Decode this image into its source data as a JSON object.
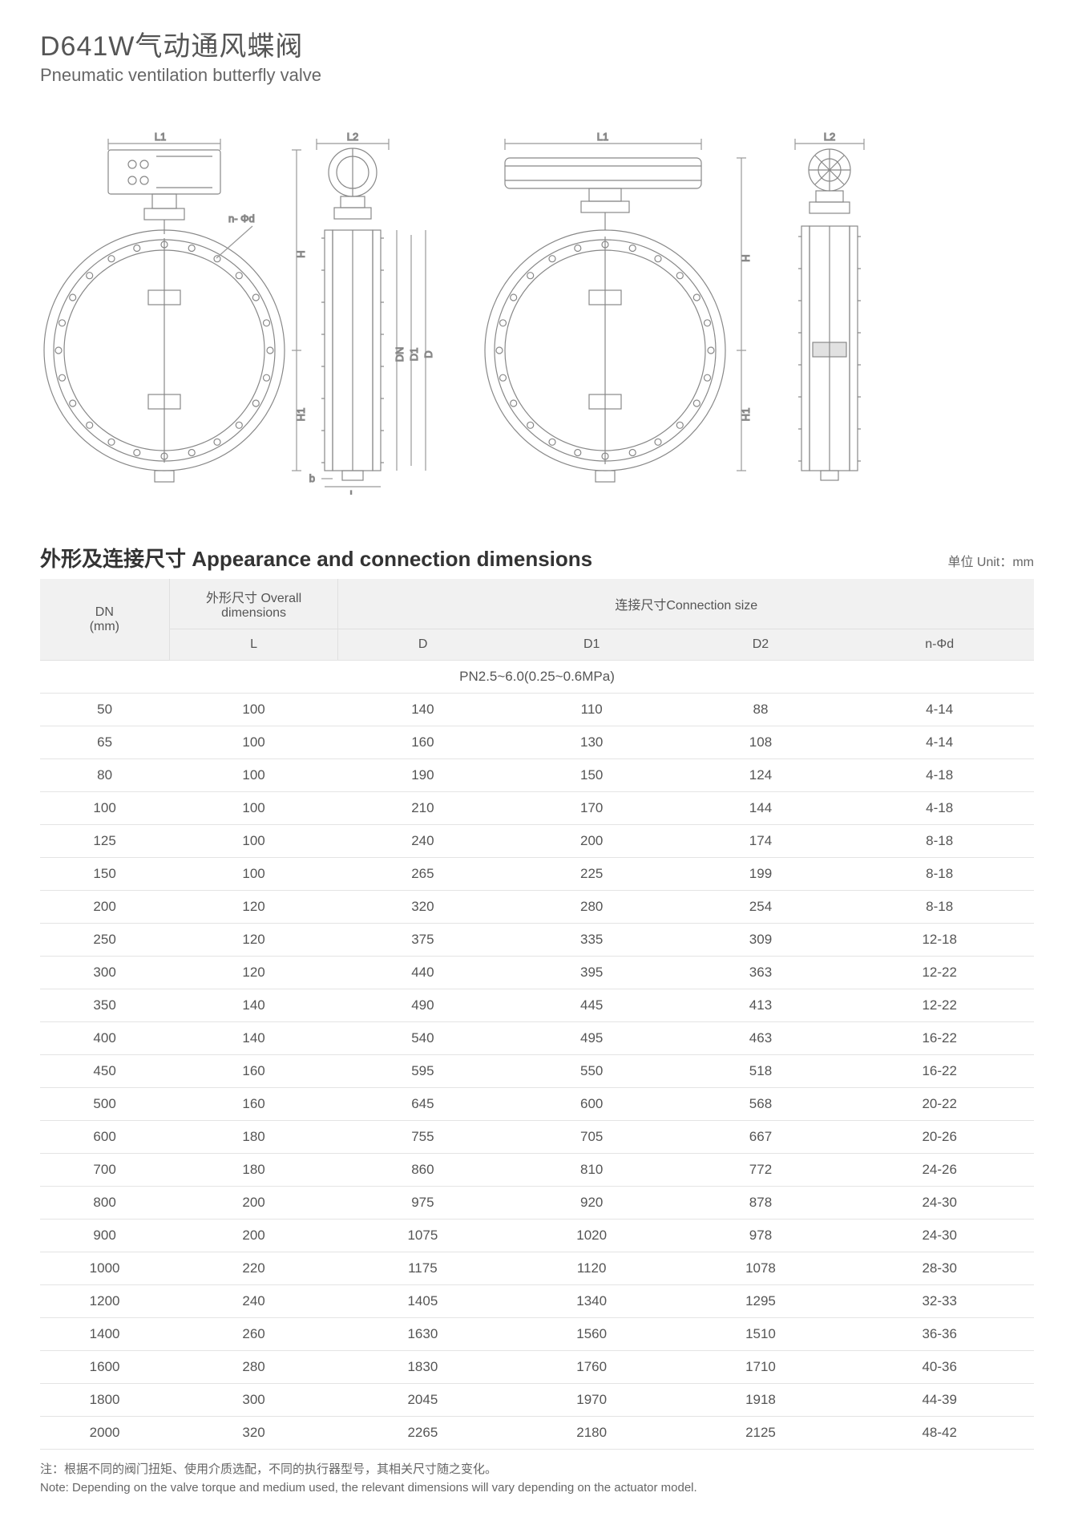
{
  "title": {
    "cn": "D641W气动通风蝶阀",
    "en": "Pneumatic ventilation butterfly valve"
  },
  "diagram": {
    "stroke": "#888888",
    "thin_stroke": "#aaaaaa",
    "labels": {
      "L1a": "L1",
      "L2a": "L2",
      "L1b": "L1",
      "L2b": "L2",
      "H_a": "H",
      "H_b": "H",
      "H1_a": "H1",
      "H1_b": "H1",
      "DN": "DN",
      "D1": "D1",
      "D": "D",
      "L": "L",
      "b": "b",
      "nphi": "n- Φd"
    }
  },
  "section": {
    "title": "外形及连接尺寸 Appearance and connection dimensions",
    "unit": "单位 Unit：mm"
  },
  "table": {
    "header": {
      "dn": "DN\n(mm)",
      "overall_group": "外形尺寸 Overall dimensions",
      "connection_group": "连接尺寸Connection size",
      "cols": [
        "L",
        "D",
        "D1",
        "D2",
        "n-Φd"
      ]
    },
    "pressure_row": "PN2.5~6.0(0.25~0.6MPa)",
    "columns_widths_pct": [
      13,
      17,
      17,
      17,
      17,
      19
    ],
    "rows": [
      [
        "50",
        "100",
        "140",
        "110",
        "88",
        "4-14"
      ],
      [
        "65",
        "100",
        "160",
        "130",
        "108",
        "4-14"
      ],
      [
        "80",
        "100",
        "190",
        "150",
        "124",
        "4-18"
      ],
      [
        "100",
        "100",
        "210",
        "170",
        "144",
        "4-18"
      ],
      [
        "125",
        "100",
        "240",
        "200",
        "174",
        "8-18"
      ],
      [
        "150",
        "100",
        "265",
        "225",
        "199",
        "8-18"
      ],
      [
        "200",
        "120",
        "320",
        "280",
        "254",
        "8-18"
      ],
      [
        "250",
        "120",
        "375",
        "335",
        "309",
        "12-18"
      ],
      [
        "300",
        "120",
        "440",
        "395",
        "363",
        "12-22"
      ],
      [
        "350",
        "140",
        "490",
        "445",
        "413",
        "12-22"
      ],
      [
        "400",
        "140",
        "540",
        "495",
        "463",
        "16-22"
      ],
      [
        "450",
        "160",
        "595",
        "550",
        "518",
        "16-22"
      ],
      [
        "500",
        "160",
        "645",
        "600",
        "568",
        "20-22"
      ],
      [
        "600",
        "180",
        "755",
        "705",
        "667",
        "20-26"
      ],
      [
        "700",
        "180",
        "860",
        "810",
        "772",
        "24-26"
      ],
      [
        "800",
        "200",
        "975",
        "920",
        "878",
        "24-30"
      ],
      [
        "900",
        "200",
        "1075",
        "1020",
        "978",
        "24-30"
      ],
      [
        "1000",
        "220",
        "1175",
        "1120",
        "1078",
        "28-30"
      ],
      [
        "1200",
        "240",
        "1405",
        "1340",
        "1295",
        "32-33"
      ],
      [
        "1400",
        "260",
        "1630",
        "1560",
        "1510",
        "36-36"
      ],
      [
        "1600",
        "280",
        "1830",
        "1760",
        "1710",
        "40-36"
      ],
      [
        "1800",
        "300",
        "2045",
        "1970",
        "1918",
        "44-39"
      ],
      [
        "2000",
        "320",
        "2265",
        "2180",
        "2125",
        "48-42"
      ]
    ]
  },
  "footnote": {
    "cn": "注：根据不同的阀门扭矩、使用介质选配，不同的执行器型号，其相关尺寸随之变化。",
    "en": "Note: Depending on the valve torque and medium used, the relevant dimensions will vary depending on the actuator model."
  }
}
